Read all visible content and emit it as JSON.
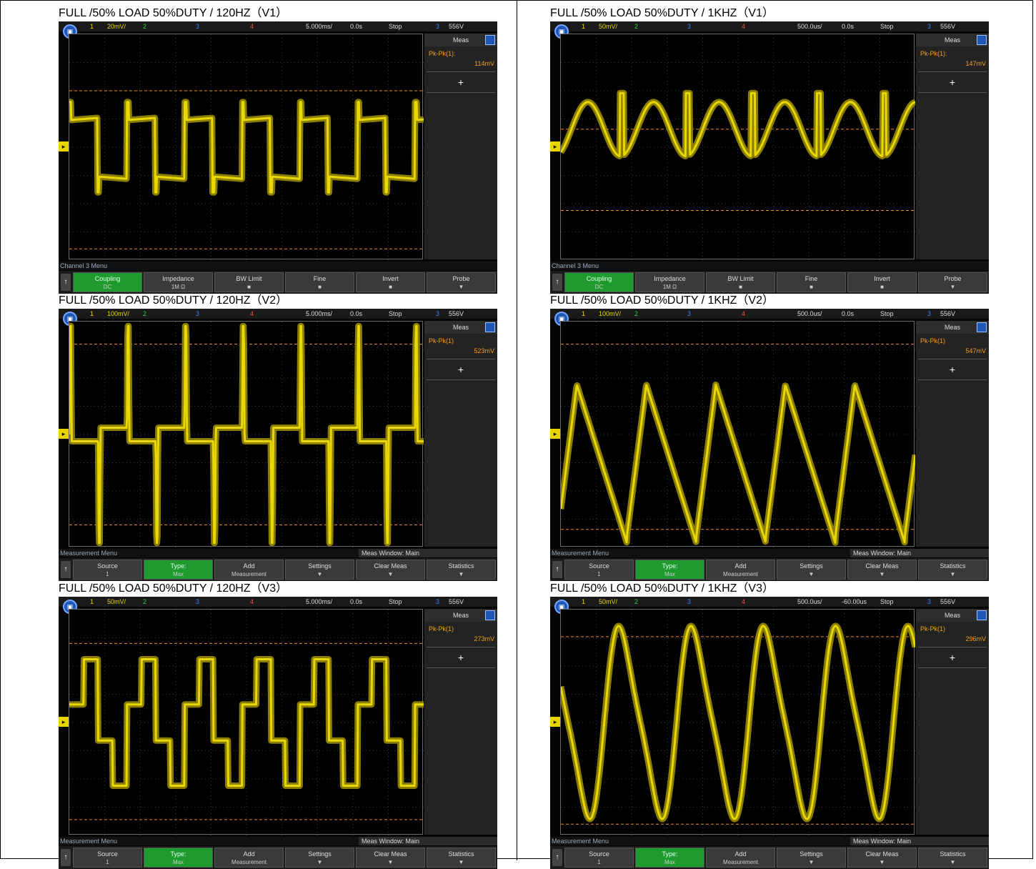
{
  "panels": [
    {
      "caption": "FULL /50% LOAD 50%DUTY / 120HZ（V1）",
      "volts": "20mV/",
      "time": "5.000ms/",
      "delay": "0.0s",
      "level": "556V",
      "meas_label": "Pk-Pk(1):",
      "meas_value": "114mV",
      "menu_title": "Channel 3 Menu",
      "menu_window": "",
      "softkeys": [
        {
          "l": "Coupling",
          "v": "DC",
          "on": true
        },
        {
          "l": "Impedance",
          "v": "1M Ω",
          "on": false
        },
        {
          "l": "BW Limit",
          "v": "■",
          "on": false
        },
        {
          "l": "Fine",
          "v": "■",
          "on": false
        },
        {
          "l": "Invert",
          "v": "■",
          "on": false
        },
        {
          "l": "Probe",
          "v": "▼",
          "on": false
        }
      ],
      "wave": "v1slow"
    },
    {
      "caption": "FULL /50% LOAD 50%DUTY / 1KHZ（V1）",
      "volts": "50mV/",
      "time": "500.0us/",
      "delay": "0.0s",
      "level": "556V",
      "meas_label": "Pk-Pk(1):",
      "meas_value": "147mV",
      "menu_title": "Channel 3 Menu",
      "menu_window": "",
      "softkeys": [
        {
          "l": "Coupling",
          "v": "DC",
          "on": true
        },
        {
          "l": "Impedance",
          "v": "1M Ω",
          "on": false
        },
        {
          "l": "BW Limit",
          "v": "■",
          "on": false
        },
        {
          "l": "Fine",
          "v": "■",
          "on": false
        },
        {
          "l": "Invert",
          "v": "■",
          "on": false
        },
        {
          "l": "Probe",
          "v": "▼",
          "on": false
        }
      ],
      "wave": "v1fast"
    },
    {
      "caption": "FULL /50% LOAD 50%DUTY / 120HZ（V2）",
      "volts": "100mV/",
      "time": "5.000ms/",
      "delay": "0.0s",
      "level": "556V",
      "meas_label": "Pk-Pk(1)",
      "meas_value": "523mV",
      "menu_title": "Measurement Menu",
      "menu_window": "Meas Window: Main",
      "softkeys": [
        {
          "l": "Source",
          "v": "1",
          "on": false
        },
        {
          "l": "Type:",
          "v": "Max",
          "on": true
        },
        {
          "l": "Add",
          "v": "Measurement",
          "on": false
        },
        {
          "l": "Settings",
          "v": "▼",
          "on": false
        },
        {
          "l": "Clear Meas",
          "v": "▼",
          "on": false
        },
        {
          "l": "Statistics",
          "v": "▼",
          "on": false
        }
      ],
      "wave": "v2slow"
    },
    {
      "caption": "FULL /50% LOAD 50%DUTY / 1KHZ（V2）",
      "volts": "100mV/",
      "time": "500.0us/",
      "delay": "0.0s",
      "level": "556V",
      "meas_label": "Pk-Pk(1)",
      "meas_value": "547mV",
      "menu_title": "Measurement Menu",
      "menu_window": "Meas Window: Main",
      "softkeys": [
        {
          "l": "Source",
          "v": "1",
          "on": false
        },
        {
          "l": "Type:",
          "v": "Max",
          "on": true
        },
        {
          "l": "Add",
          "v": "Measurement",
          "on": false
        },
        {
          "l": "Settings",
          "v": "▼",
          "on": false
        },
        {
          "l": "Clear Meas",
          "v": "▼",
          "on": false
        },
        {
          "l": "Statistics",
          "v": "▼",
          "on": false
        }
      ],
      "wave": "v2fast"
    },
    {
      "caption": "FULL /50% LOAD 50%DUTY / 120HZ（V3）",
      "volts": "50mV/",
      "time": "5.000ms/",
      "delay": "0.0s",
      "level": "556V",
      "meas_label": "Pk-Pk(1)",
      "meas_value": "273mV",
      "menu_title": "Measurement Menu",
      "menu_window": "Meas Window: Main",
      "softkeys": [
        {
          "l": "Source",
          "v": "1",
          "on": false
        },
        {
          "l": "Type:",
          "v": "Max",
          "on": true
        },
        {
          "l": "Add",
          "v": "Measurement",
          "on": false
        },
        {
          "l": "Settings",
          "v": "▼",
          "on": false
        },
        {
          "l": "Clear Meas",
          "v": "▼",
          "on": false
        },
        {
          "l": "Statistics",
          "v": "▼",
          "on": false
        }
      ],
      "wave": "v3slow"
    },
    {
      "caption": "FULL /50% LOAD 50%DUTY / 1KHZ（V3）",
      "volts": "50mV/",
      "time": "500.0us/",
      "delay": "-60.00us",
      "level": "556V",
      "meas_label": "Pk-Pk(1)",
      "meas_value": "296mV",
      "menu_title": "Measurement Menu",
      "menu_window": "Meas Window: Main",
      "softkeys": [
        {
          "l": "Source",
          "v": "1",
          "on": false
        },
        {
          "l": "Type:",
          "v": "Max",
          "on": true
        },
        {
          "l": "Add",
          "v": "Measurement",
          "on": false
        },
        {
          "l": "Settings",
          "v": "▼",
          "on": false
        },
        {
          "l": "Clear Meas",
          "v": "▼",
          "on": false
        },
        {
          "l": "Statistics",
          "v": "▼",
          "on": false
        }
      ],
      "wave": "v3fast"
    }
  ],
  "common": {
    "ch1": "1",
    "ch2": "2",
    "ch3": "3",
    "ch4": "4",
    "trig_ch": "3",
    "status": "Stop",
    "meas_title": "Meas"
  },
  "colors": {
    "trace": "#e8d800",
    "cursor": "#f08a1c",
    "grid": "#3a3a3a",
    "softkey_on": "#1f9a2e"
  }
}
